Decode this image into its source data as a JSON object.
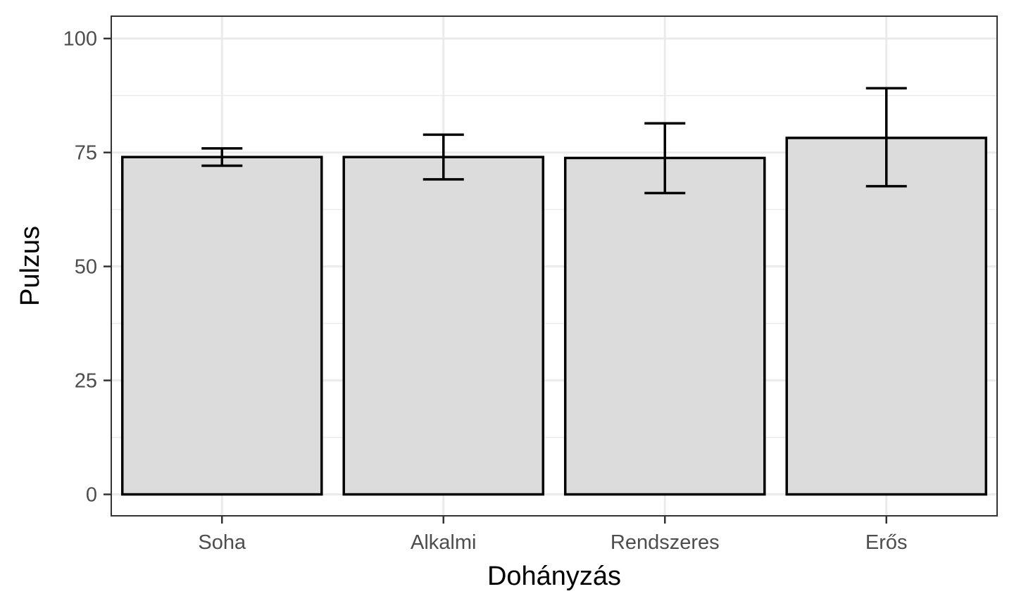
{
  "chart_data": {
    "type": "bar",
    "title": "",
    "xlabel": "Dohányzás",
    "ylabel": "Pulzus",
    "categories": [
      "Soha",
      "Alkalmi",
      "Rendszeres",
      "Erős"
    ],
    "values": [
      74,
      74,
      73.8,
      78.2
    ],
    "error_bars": {
      "lower": [
        72.1,
        69.1,
        66.1,
        67.6
      ],
      "upper": [
        75.9,
        78.9,
        81.4,
        89.1
      ]
    },
    "ylim": [
      -4.7,
      104.9
    ],
    "yticks": [
      0,
      25,
      50,
      75,
      100
    ],
    "ytick_labels": [
      "0",
      "25",
      "50",
      "75",
      "100"
    ],
    "grid": true,
    "legend": "none",
    "colors": {
      "bar_fill": "#dcdcdc",
      "bar_stroke": "#000000",
      "grid": "#ebebeb",
      "panel_border": "#333333",
      "tick_text": "#4d4d4d",
      "title_text": "#000000"
    }
  }
}
